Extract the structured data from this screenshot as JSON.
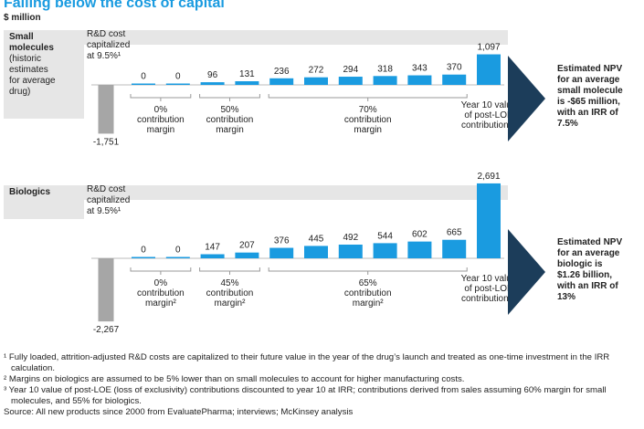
{
  "title": "Falling below the cost of capital",
  "unit": "$ million",
  "chart_data": [
    {
      "type": "bar",
      "title": [
        "Small",
        "molecules"
      ],
      "subtitle": [
        "(historic",
        "estimates",
        "for average",
        "drug)"
      ],
      "values": [
        -1751,
        0,
        0,
        96,
        131,
        236,
        272,
        294,
        318,
        343,
        370,
        1097
      ],
      "value_labels": [
        "-1,751",
        "0",
        "0",
        "96",
        "131",
        "236",
        "272",
        "294",
        "318",
        "343",
        "370",
        "1,097"
      ],
      "colors": [
        "#a6a6a6",
        "#1a9be0",
        "#1a9be0",
        "#1a9be0",
        "#1a9be0",
        "#1a9be0",
        "#1a9be0",
        "#1a9be0",
        "#1a9be0",
        "#1a9be0",
        "#1a9be0",
        "#1a9be0"
      ],
      "annotation": [
        "R&D cost",
        "capitalized",
        "at 9.5%¹"
      ],
      "margins": [
        [
          "0%",
          "contribution",
          "margin"
        ],
        [
          "50%",
          "contribution",
          "margin"
        ],
        [
          "70%",
          "contribution",
          "margin"
        ]
      ],
      "end_label": [
        "Year 10 value",
        "of post-LOE",
        "contributions³"
      ],
      "callout": [
        "Estimated NPV",
        "for an average",
        "small molecule",
        "is -$65 million,",
        "with an IRR of",
        "7.5%"
      ]
    },
    {
      "type": "bar",
      "title": [
        "Biologics"
      ],
      "subtitle": [],
      "values": [
        -2267,
        0,
        0,
        147,
        207,
        376,
        445,
        492,
        544,
        602,
        665,
        2691
      ],
      "value_labels": [
        "-2,267",
        "0",
        "0",
        "147",
        "207",
        "376",
        "445",
        "492",
        "544",
        "602",
        "665",
        "2,691"
      ],
      "colors": [
        "#a6a6a6",
        "#1a9be0",
        "#1a9be0",
        "#1a9be0",
        "#1a9be0",
        "#1a9be0",
        "#1a9be0",
        "#1a9be0",
        "#1a9be0",
        "#1a9be0",
        "#1a9be0",
        "#1a9be0"
      ],
      "annotation": [
        "R&D cost",
        "capitalized",
        "at 9.5%¹"
      ],
      "margins": [
        [
          "0%",
          "contribution",
          "margin²"
        ],
        [
          "45%",
          "contribution",
          "margin²"
        ],
        [
          "65%",
          "contribution",
          "margin²"
        ]
      ],
      "end_label": [
        "Year 10 value",
        "of post-LOE",
        "contributions³"
      ],
      "callout": [
        "Estimated NPV",
        "for an average",
        "biologic is",
        "$1.26 billion,",
        "with an IRR of",
        "13%"
      ]
    }
  ],
  "footnotes": [
    "¹ Fully loaded, attrition-adjusted R&D costs are capitalized to their future value in the year of the drug’s launch and treated as one-time investment in the IRR calculation.",
    "² Margins on biologics are assumed to be 5% lower than on small molecules to account for higher manufacturing costs.",
    "³ Year 10 value of post-LOE (loss of exclusivity) contributions discounted to year 10 at IRR; contributions derived from sales assuming 60% margin for small molecules, and 55% for biologics."
  ],
  "source": "Source: All new products since 2000 from EvaluatePharma; interviews; McKinsey analysis"
}
